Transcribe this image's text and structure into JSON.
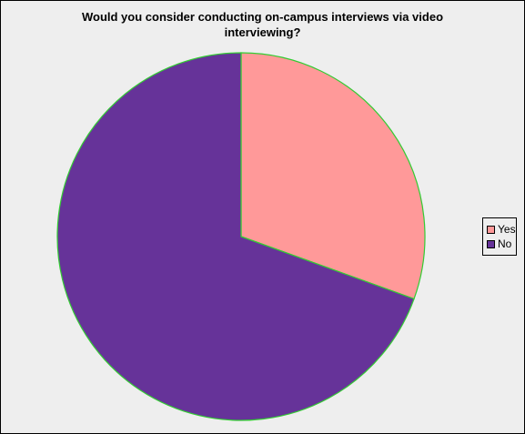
{
  "chart_data": {
    "type": "pie",
    "title": "Would you consider conducting on-campus interviews via video interviewing?",
    "categories": [
      "Yes",
      "No"
    ],
    "values": [
      30.5,
      69.5
    ],
    "unit": "percent",
    "legend_position": "right",
    "colors": {
      "slices": [
        "#ff9999",
        "#663399"
      ],
      "slice_outline": "#33cc33",
      "background": "#eeeeee"
    }
  },
  "legend": {
    "items": [
      {
        "label": "Yes",
        "color": "#ff9999"
      },
      {
        "label": "No",
        "color": "#663399"
      }
    ]
  }
}
